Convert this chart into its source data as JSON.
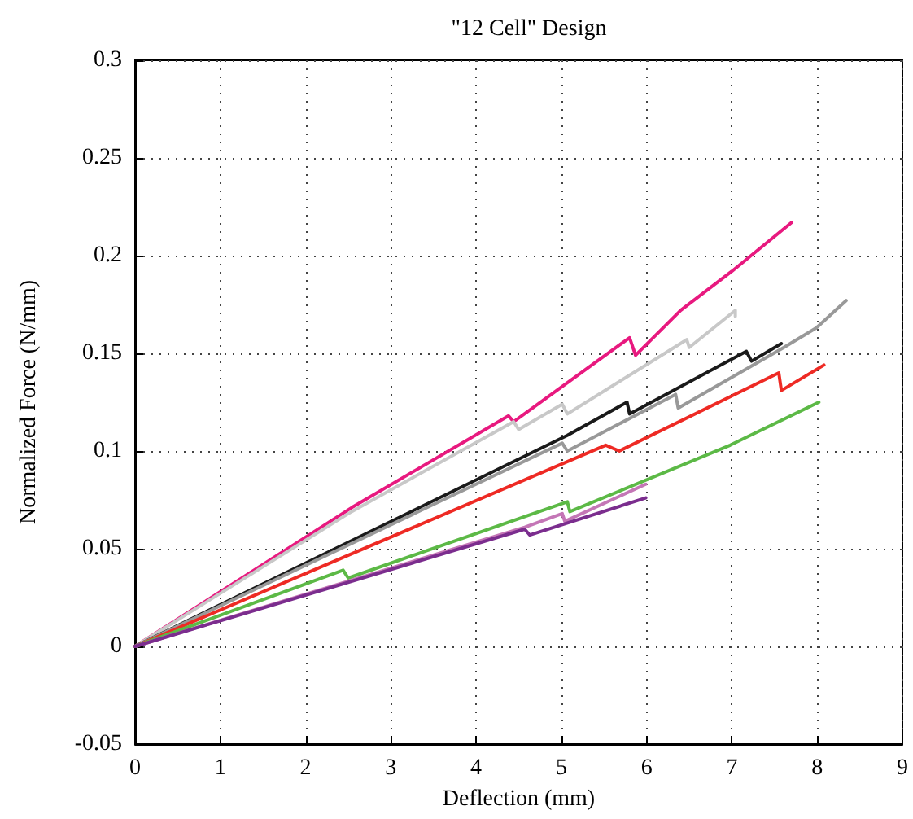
{
  "chart_data": {
    "type": "line",
    "title": "\"12 Cell\" Design",
    "xlabel": "Deflection (mm)",
    "ylabel": "Normalized Force (N/mm)",
    "xlim": [
      0,
      9
    ],
    "xticks": [
      0,
      1,
      2,
      3,
      4,
      5,
      6,
      7,
      8,
      9
    ],
    "ylim": [
      -0.05,
      0.3
    ],
    "yticks": [
      -0.05,
      0,
      0.05,
      0.1,
      0.15,
      0.2,
      0.25,
      0.3
    ],
    "grid": true,
    "marker": "none",
    "line_style": "solid",
    "series": [
      {
        "color": "#e8197f",
        "x": [
          0,
          2.54,
          4.38,
          4.44,
          5.8,
          5.87,
          6.4,
          7.0,
          7.7
        ],
        "values": [
          0,
          0.071,
          0.118,
          0.115,
          0.158,
          0.149,
          0.172,
          0.192,
          0.217
        ]
      },
      {
        "color": "#c8c8c8",
        "x": [
          0,
          2.54,
          4.44,
          4.5,
          5.01,
          5.07,
          6.47,
          6.5,
          7.04,
          7.04
        ],
        "values": [
          0,
          0.069,
          0.115,
          0.111,
          0.124,
          0.119,
          0.157,
          0.153,
          0.172,
          0.169
        ]
      },
      {
        "color": "#1a1a1a",
        "x": [
          0,
          5.07,
          5.77,
          5.8,
          7.17,
          7.23,
          7.58
        ],
        "values": [
          0,
          0.108,
          0.125,
          0.119,
          0.151,
          0.146,
          0.155
        ]
      },
      {
        "color": "#999999",
        "x": [
          0,
          5.01,
          5.07,
          6.34,
          6.37,
          7.61,
          7.99,
          8.34
        ],
        "values": [
          0,
          0.104,
          0.1,
          0.129,
          0.122,
          0.153,
          0.163,
          0.177
        ]
      },
      {
        "color": "#ee2a24",
        "x": [
          0,
          5.52,
          5.68,
          7.55,
          7.58,
          8.08
        ],
        "values": [
          0,
          0.103,
          0.1,
          0.14,
          0.131,
          0.144
        ]
      },
      {
        "color": "#5cb946",
        "x": [
          0,
          2.44,
          2.5,
          5.07,
          5.1,
          6.98,
          8.02
        ],
        "values": [
          0,
          0.039,
          0.035,
          0.074,
          0.069,
          0.103,
          0.125
        ]
      },
      {
        "color": "#c476b6",
        "x": [
          0,
          4.57,
          5.01,
          5.04,
          5.99
        ],
        "values": [
          0,
          0.061,
          0.068,
          0.064,
          0.083
        ]
      },
      {
        "color": "#7b2d8e",
        "x": [
          0,
          4.57,
          4.63,
          5.99
        ],
        "values": [
          0,
          0.06,
          0.057,
          0.076
        ]
      }
    ]
  }
}
